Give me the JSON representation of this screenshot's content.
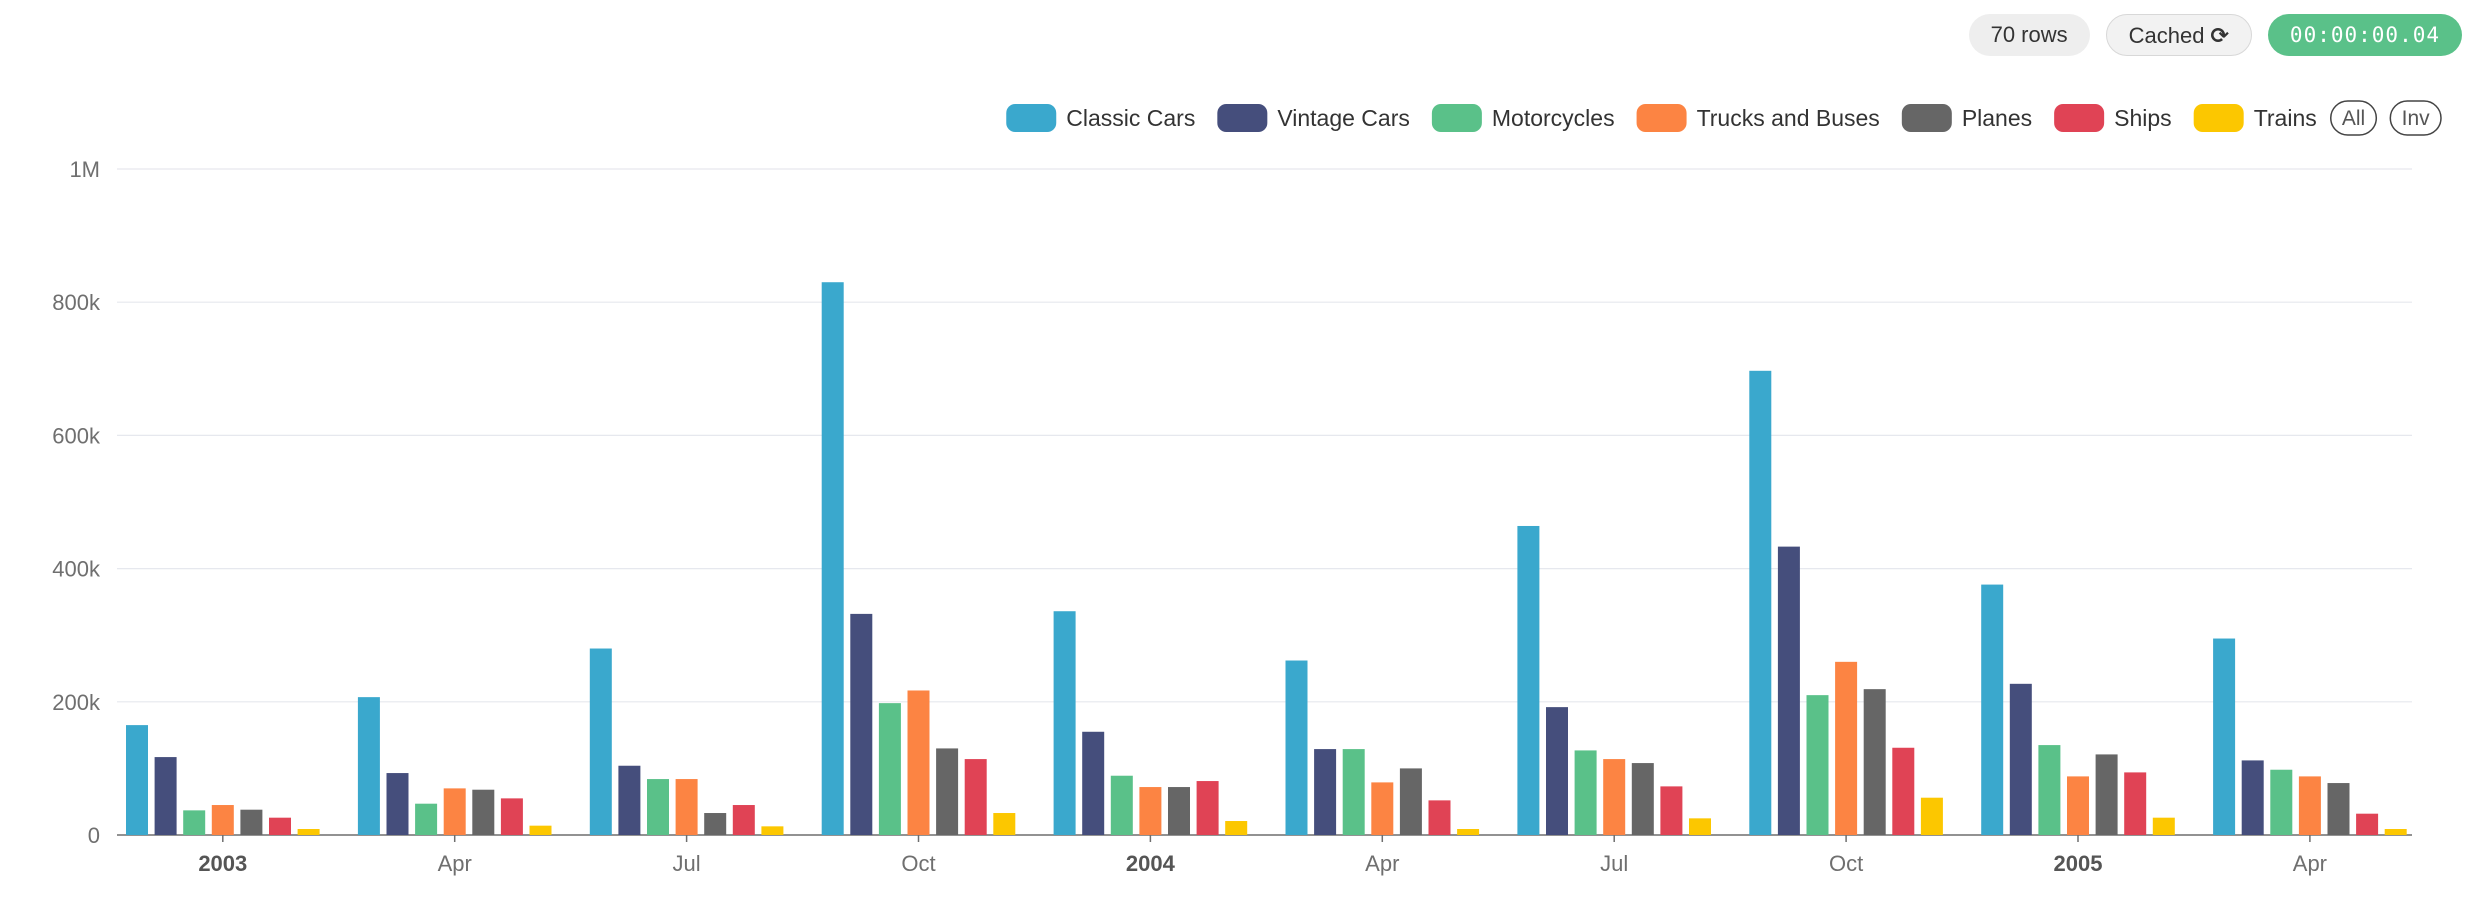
{
  "status": {
    "rows_label": "70 rows",
    "cached_label": "Cached",
    "timer_label": "00:00:00.04"
  },
  "legend": {
    "all_label": "All",
    "inv_label": "Inv"
  },
  "colors": {
    "Classic Cars": "#3aa8cd",
    "Vintage Cars": "#454e7c",
    "Motorcycles": "#5ac189",
    "Trucks and Buses": "#fc8443",
    "Planes": "#666666",
    "Ships": "#e04355",
    "Trains": "#fcc700"
  },
  "chart_data": {
    "type": "bar",
    "categories": [
      "2003-01",
      "2003-04",
      "2003-07",
      "2003-10",
      "2004-01",
      "2004-04",
      "2004-07",
      "2004-10",
      "2005-01",
      "2005-04"
    ],
    "x_tick_labels": [
      "2003",
      "Apr",
      "Jul",
      "Oct",
      "2004",
      "Apr",
      "Jul",
      "Oct",
      "2005",
      "Apr"
    ],
    "major_ticks": [
      "2003",
      "2004",
      "2005"
    ],
    "y_tick_labels": [
      "0",
      "200k",
      "400k",
      "600k",
      "800k",
      "1M"
    ],
    "y_tick_values": [
      0,
      200000,
      400000,
      600000,
      800000,
      1000000
    ],
    "ylim": [
      0,
      1000000
    ],
    "grid": true,
    "legend_position": "top-right",
    "series": [
      {
        "name": "Classic Cars",
        "values": [
          165000,
          207000,
          280000,
          830000,
          336000,
          262000,
          464000,
          697000,
          376000,
          295000
        ]
      },
      {
        "name": "Vintage Cars",
        "values": [
          117000,
          93000,
          104000,
          332000,
          155000,
          129000,
          192000,
          433000,
          227000,
          112000
        ]
      },
      {
        "name": "Motorcycles",
        "values": [
          37000,
          47000,
          84000,
          198000,
          89000,
          129000,
          127000,
          210000,
          135000,
          98000
        ]
      },
      {
        "name": "Trucks and Buses",
        "values": [
          45000,
          70000,
          84000,
          217000,
          72000,
          79000,
          114000,
          260000,
          88000,
          88000
        ]
      },
      {
        "name": "Planes",
        "values": [
          38000,
          68000,
          33000,
          130000,
          72000,
          100000,
          108000,
          219000,
          121000,
          78000
        ]
      },
      {
        "name": "Ships",
        "values": [
          26000,
          55000,
          45000,
          114000,
          81000,
          52000,
          73000,
          131000,
          94000,
          32000
        ]
      },
      {
        "name": "Trains",
        "values": [
          9000,
          14000,
          13000,
          33000,
          21000,
          9000,
          25000,
          56000,
          26000,
          9000
        ]
      }
    ]
  }
}
